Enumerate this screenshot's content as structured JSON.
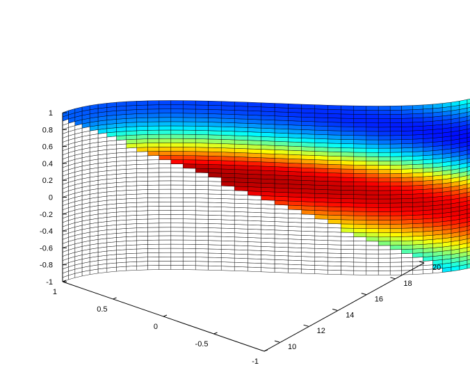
{
  "chart_data": {
    "type": "surface",
    "title": "",
    "xlabel": "",
    "ylabel": "",
    "zlabel": "",
    "colormap": "jet",
    "edge_color": "#000000",
    "background": "#ffffff",
    "xlim": [
      -1,
      1
    ],
    "ylim": [
      10,
      20
    ],
    "zlim": [
      -1,
      1
    ],
    "x_ticks": [
      "1",
      "0.5",
      "0",
      "-0.5",
      "-1"
    ],
    "y_ticks": [
      "10",
      "12",
      "14",
      "16",
      "18",
      "20"
    ],
    "z_ticks": [
      "1",
      "0.8",
      "0.6",
      "0.4",
      "0.2",
      "0",
      "-0.2",
      "-0.4",
      "-0.6",
      "-0.8",
      "-1"
    ],
    "surface": {
      "shape": "curved sheet: x = cos(pi*(y-10)/10), y from 10 to 20, z from -1 to 1",
      "rows": 40,
      "cols": 40,
      "blank_region": "lower-left triangular region of the sheet (left blank, white faces)"
    }
  }
}
